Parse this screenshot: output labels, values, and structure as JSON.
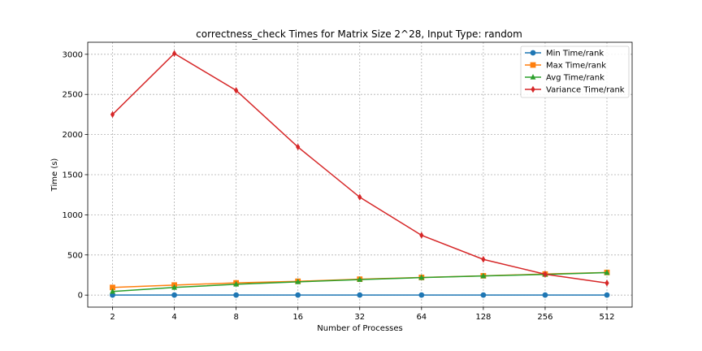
{
  "chart_data": {
    "type": "line",
    "title": "correctness_check Times for Matrix Size 2^28, Input Type: random",
    "xlabel": "Number of Processes",
    "ylabel": "Time (s)",
    "categories": [
      "2",
      "4",
      "8",
      "16",
      "32",
      "64",
      "128",
      "256",
      "512"
    ],
    "ylim": [
      -150,
      3150
    ],
    "yticks": [
      0,
      500,
      1000,
      1500,
      2000,
      2500,
      3000
    ],
    "grid": true,
    "legend_position": "top-right",
    "series": [
      {
        "name": "Min Time/rank",
        "color": "#1f77b4",
        "marker": "circle",
        "values": [
          0.5,
          0.5,
          0.5,
          0.5,
          0.5,
          0.5,
          0.5,
          0.5,
          0.5
        ]
      },
      {
        "name": "Max Time/rank",
        "color": "#ff7f0e",
        "marker": "square",
        "values": [
          95,
          125,
          152,
          172,
          198,
          220,
          240,
          262,
          282
        ]
      },
      {
        "name": "Avg Time/rank",
        "color": "#2ca02c",
        "marker": "triangle",
        "values": [
          45,
          95,
          135,
          165,
          193,
          218,
          238,
          258,
          280
        ]
      },
      {
        "name": "Variance Time/rank",
        "color": "#d62728",
        "marker": "diamond",
        "values": [
          2250,
          3010,
          2550,
          1845,
          1220,
          745,
          445,
          260,
          150
        ]
      }
    ]
  }
}
